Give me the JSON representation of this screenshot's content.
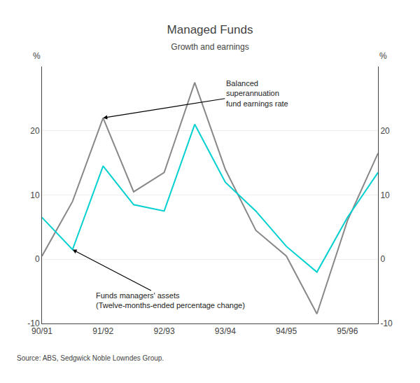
{
  "chart_data": {
    "type": "line",
    "title": "Managed Funds",
    "subtitle": "Growth and earnings",
    "source": "Source: ABS, Sedgwick Noble Lowndes Group.",
    "ylabel": "%",
    "y2label": "%",
    "categories": [
      "90/91",
      null,
      "91/92",
      null,
      "92/93",
      null,
      "93/94",
      null,
      "94/95",
      null,
      "95/96",
      null
    ],
    "series": [
      {
        "color": "#888888",
        "values": [
          0.5,
          9.0,
          22.0,
          10.5,
          13.5,
          27.5,
          14.0,
          4.5,
          0.5,
          -8.5,
          6.0,
          16.5
        ]
      },
      {
        "color": "#00d0d0",
        "values": [
          6.5,
          1.5,
          14.5,
          8.5,
          7.5,
          21.0,
          12.0,
          7.5,
          2.0,
          -2.0,
          6.5,
          13.5
        ]
      }
    ],
    "ylim": [
      -10,
      30
    ],
    "yticks": [
      -10,
      0,
      10,
      20
    ],
    "y2lim": [
      -10,
      30
    ],
    "y2ticks": [
      -10,
      0,
      10,
      20
    ],
    "grid": true,
    "annotations": [
      "Balanced\nsuperannuation\nfund earnings rate",
      "Funds managers' assets\n(Twelve-months-ended percentage change)"
    ]
  }
}
